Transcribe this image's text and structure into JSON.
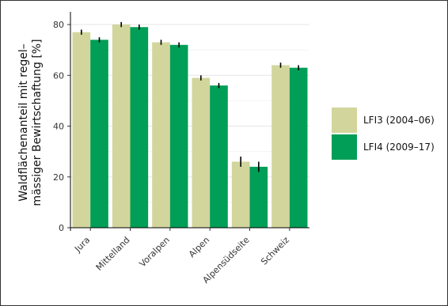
{
  "chart_data": {
    "type": "bar",
    "title": "",
    "xlabel": "",
    "ylabel_lines": [
      "Waldflächenanteil mit regel–",
      "mässiger Bewirtschaftung [%]"
    ],
    "ylim": [
      0,
      85
    ],
    "yticks": [
      0,
      20,
      40,
      60,
      80
    ],
    "grid": true,
    "legend_position": "right",
    "categories": [
      "Jura",
      "Mittelland",
      "Voralpen",
      "Alpen",
      "Alpensüdseite",
      "Schweiz"
    ],
    "series": [
      {
        "name": "LFI3 (2004–06)",
        "color": "#d2d69c",
        "values": [
          77,
          80,
          73,
          59,
          26,
          64
        ],
        "error": [
          1,
          1,
          1,
          1,
          2,
          1
        ]
      },
      {
        "name": "LFI4 (2009–17)",
        "color": "#009e57",
        "values": [
          74,
          79,
          72,
          56,
          24,
          63
        ],
        "error": [
          1,
          1,
          1,
          1,
          2,
          1
        ]
      }
    ]
  }
}
